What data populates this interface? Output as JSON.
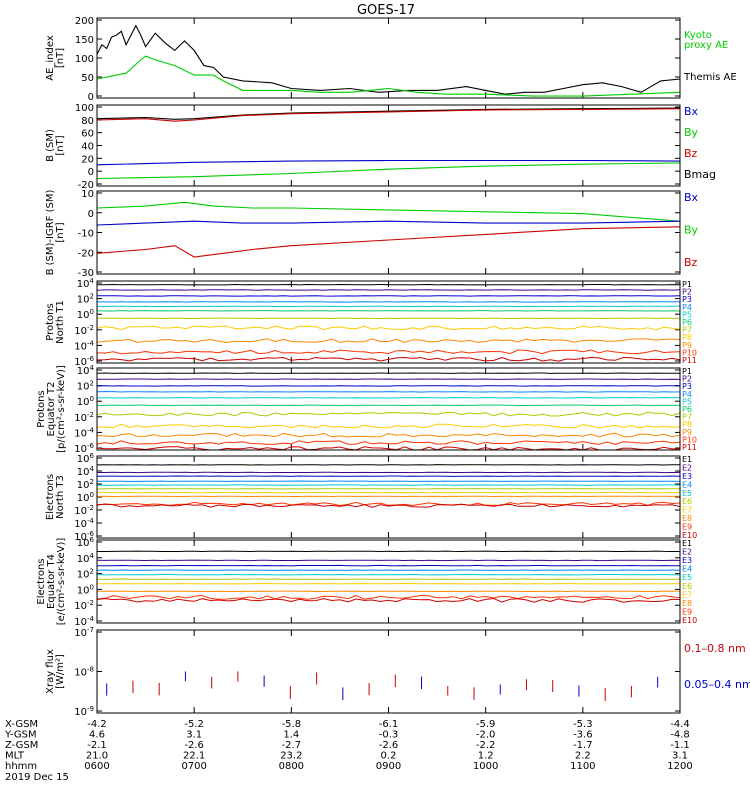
{
  "title": "GOES-17",
  "chart_data": [
    {
      "type": "line",
      "ylabel": "AE_index\n[nT]",
      "yticks": [
        "200",
        "150",
        "100",
        "50",
        "0"
      ],
      "ylim": [
        0,
        210
      ],
      "legend": [
        {
          "text": "Kyoto",
          "color": "#00cc00"
        },
        {
          "text": "proxy AE",
          "color": "#00cc00"
        },
        {
          "text": "Themis AE",
          "color": "#000000"
        }
      ],
      "series": [
        {
          "color": "#000000",
          "t": [
            0,
            0.05,
            0.1,
            0.15,
            0.2,
            0.25,
            0.3,
            0.4,
            0.45,
            0.5,
            0.6,
            0.7,
            0.8,
            0.9,
            1.0,
            1.1,
            1.2,
            1.3,
            1.5,
            1.8,
            2.0,
            2.3,
            2.6,
            2.9,
            3.2,
            3.5,
            3.8,
            4.0,
            4.2,
            4.4,
            4.6,
            4.8,
            5.0,
            5.2,
            5.4,
            5.6,
            5.8,
            6.0
          ],
          "v": [
            115,
            140,
            130,
            160,
            165,
            175,
            140,
            190,
            165,
            135,
            170,
            145,
            125,
            150,
            125,
            85,
            80,
            55,
            45,
            40,
            25,
            20,
            25,
            15,
            20,
            20,
            30,
            20,
            10,
            15,
            15,
            25,
            35,
            40,
            30,
            15,
            45,
            50
          ]
        },
        {
          "color": "#00cc00",
          "t": [
            0,
            0.3,
            0.45,
            0.5,
            0.6,
            0.8,
            1.0,
            1.2,
            1.3,
            1.5,
            2.0,
            2.3,
            2.6,
            3.0,
            3.3,
            3.6,
            4.0,
            4.5,
            5.0,
            5.5,
            6.0
          ],
          "v": [
            50,
            65,
            100,
            110,
            100,
            85,
            60,
            60,
            45,
            20,
            20,
            15,
            15,
            25,
            15,
            10,
            10,
            5,
            5,
            10,
            15
          ]
        }
      ]
    },
    {
      "type": "line",
      "ylabel": "B (SM)\n[nT]",
      "yticks": [
        "100",
        "80",
        "60",
        "40",
        "20",
        "0",
        "-20"
      ],
      "ylim": [
        -25,
        105
      ],
      "legend": [
        {
          "text": "Bx",
          "color": "#0000cc"
        },
        {
          "text": "By",
          "color": "#00cc00"
        },
        {
          "text": "Bz",
          "color": "#cc0000"
        },
        {
          "text": "Bmag",
          "color": "#000000"
        }
      ],
      "series": [
        {
          "color": "#000000",
          "t": [
            0,
            0.5,
            0.8,
            1.0,
            1.5,
            2.0,
            3.0,
            4.0,
            5.0,
            6.0
          ],
          "v": [
            83,
            85,
            82,
            83,
            89,
            92,
            95,
            98,
            99,
            100
          ]
        },
        {
          "color": "#cc0000",
          "t": [
            0,
            0.5,
            0.8,
            1.0,
            1.5,
            2.0,
            3.0,
            4.0,
            5.0,
            6.0
          ],
          "v": [
            81,
            83,
            79,
            81,
            88,
            91,
            94,
            97,
            98,
            99
          ]
        },
        {
          "color": "#0000cc",
          "t": [
            0,
            1.0,
            2.0,
            3.0,
            4.0,
            5.0,
            6.0
          ],
          "v": [
            9,
            13,
            15,
            16,
            16,
            16,
            15
          ]
        },
        {
          "color": "#00cc00",
          "t": [
            0,
            1.0,
            2.0,
            3.0,
            4.0,
            5.0,
            6.0
          ],
          "v": [
            -13,
            -10,
            -5,
            2,
            7,
            10,
            12
          ]
        }
      ]
    },
    {
      "type": "line",
      "ylabel": "B (SM)-IGRF (SM)\n[nT]",
      "yticks": [
        "10",
        "0",
        "-10",
        "-20",
        "-30"
      ],
      "ylim": [
        -31,
        13
      ],
      "legend": [
        {
          "text": "Bx",
          "color": "#0000cc"
        },
        {
          "text": "By",
          "color": "#00cc00"
        },
        {
          "text": "Bz",
          "color": "#cc0000"
        }
      ],
      "series": [
        {
          "color": "#00cc00",
          "t": [
            0,
            0.5,
            0.9,
            1.2,
            1.6,
            2.0,
            3.0,
            4.0,
            5.0,
            5.5,
            6.0
          ],
          "v": [
            4,
            5,
            7,
            5,
            4,
            4,
            3,
            2,
            1,
            -1,
            -3
          ]
        },
        {
          "color": "#0000cc",
          "t": [
            0,
            0.5,
            1.0,
            1.5,
            2.0,
            3.0,
            4.0,
            5.0,
            6.0
          ],
          "v": [
            -5,
            -4,
            -3,
            -4,
            -4,
            -3,
            -4,
            -4,
            -3
          ]
        },
        {
          "color": "#cc0000",
          "t": [
            0,
            0.5,
            0.8,
            1.0,
            1.3,
            1.6,
            2.0,
            3.0,
            4.0,
            5.0,
            6.0
          ],
          "v": [
            -20,
            -18,
            -16,
            -22,
            -20,
            -18,
            -16,
            -13,
            -10,
            -7,
            -6
          ]
        }
      ]
    },
    {
      "type": "line",
      "ylabel": "Protons\nNorth T1",
      "yticks": [
        "10^4",
        "10^2",
        "10^0",
        "10^-2",
        "10^-4",
        "10^-6"
      ],
      "log_range": [
        -7,
        4
      ],
      "channels": [
        {
          "text": "P1",
          "color": "#000000",
          "level": 3.5
        },
        {
          "text": "P2",
          "color": "#440088",
          "level": 2.8
        },
        {
          "text": "P3",
          "color": "#0000cc",
          "level": 2.0
        },
        {
          "text": "P4",
          "color": "#0088ff",
          "level": 1.2
        },
        {
          "text": "P5",
          "color": "#00cccc",
          "level": 0.6
        },
        {
          "text": "P6",
          "color": "#00cc66",
          "level": 0.0
        },
        {
          "text": "P7",
          "color": "#aacc00",
          "level": -1.0
        },
        {
          "text": "P8",
          "color": "#ffcc00",
          "level": -2.3
        },
        {
          "text": "P9",
          "color": "#ff8800",
          "level": -4.0
        },
        {
          "text": "P10",
          "color": "#ff3300",
          "level": -5.5
        },
        {
          "text": "P11",
          "color": "#cc0000",
          "level": -6.5
        }
      ]
    },
    {
      "type": "line",
      "ylabel": "Protons\nEquator T2\n[p/(cm²-s-sr-keV)]",
      "yticks": [
        "10^4",
        "10^2",
        "10^0",
        "10^-2",
        "10^-4",
        "10^-6"
      ],
      "log_range": [
        -7,
        4
      ],
      "channels": [
        {
          "text": "P1",
          "color": "#000000",
          "level": 3.3
        },
        {
          "text": "P2",
          "color": "#440088",
          "level": 2.5
        },
        {
          "text": "P3",
          "color": "#0000cc",
          "level": 1.6
        },
        {
          "text": "P4",
          "color": "#0088ff",
          "level": 0.8
        },
        {
          "text": "P5",
          "color": "#00cccc",
          "level": 0.0
        },
        {
          "text": "P6",
          "color": "#00cc66",
          "level": -1.0
        },
        {
          "text": "P7",
          "color": "#aacc00",
          "level": -2.2
        },
        {
          "text": "P8",
          "color": "#ffcc00",
          "level": -3.8
        },
        {
          "text": "P9",
          "color": "#ff8800",
          "level": -5.0
        },
        {
          "text": "P10",
          "color": "#ff3300",
          "level": -6.0
        },
        {
          "text": "P11",
          "color": "#cc0000",
          "level": -6.8
        }
      ]
    },
    {
      "type": "line",
      "ylabel": "Electrons\nNorth T3",
      "yticks": [
        "10^6",
        "10^4",
        "10^2",
        "10^0",
        "10^-2",
        "10^-4",
        "10^-6"
      ],
      "log_range": [
        -7,
        6
      ],
      "channels": [
        {
          "text": "E1",
          "color": "#000000",
          "level": 4.6
        },
        {
          "text": "E2",
          "color": "#440088",
          "level": 3.4
        },
        {
          "text": "E3",
          "color": "#0000cc",
          "level": 2.8
        },
        {
          "text": "E4",
          "color": "#0088ff",
          "level": 2.0
        },
        {
          "text": "E5",
          "color": "#00cccc",
          "level": 1.4
        },
        {
          "text": "E6",
          "color": "#aacc00",
          "level": 0.8
        },
        {
          "text": "E7",
          "color": "#ffcc00",
          "level": 0.2
        },
        {
          "text": "E8",
          "color": "#ff8800",
          "level": -0.4
        },
        {
          "text": "E9",
          "color": "#ff3300",
          "level": -1.6
        },
        {
          "text": "E10",
          "color": "#cc0000",
          "level": -1.9
        }
      ]
    },
    {
      "type": "line",
      "ylabel": "Electrons\nEquator T4\n[e/(cm²-s-sr-keV)]",
      "yticks": [
        "10^6",
        "10^4",
        "10^2",
        "10^0",
        "10^-2",
        "10^-4"
      ],
      "log_range": [
        -5,
        6
      ],
      "channels": [
        {
          "text": "E1",
          "color": "#000000",
          "level": 4.5
        },
        {
          "text": "E2",
          "color": "#440088",
          "level": 3.3
        },
        {
          "text": "E3",
          "color": "#0000cc",
          "level": 2.6
        },
        {
          "text": "E4",
          "color": "#0088ff",
          "level": 2.0
        },
        {
          "text": "E5",
          "color": "#00cccc",
          "level": 1.4
        },
        {
          "text": "E6",
          "color": "#aacc00",
          "level": 0.8
        },
        {
          "text": "E7",
          "color": "#ffcc00",
          "level": 0.2
        },
        {
          "text": "E8",
          "color": "#ff8800",
          "level": -0.8
        },
        {
          "text": "E9",
          "color": "#ff3300",
          "level": -1.6
        },
        {
          "text": "E10",
          "color": "#cc0000",
          "level": -2.0
        }
      ]
    },
    {
      "type": "line",
      "ylabel": "Xray flux\n[W/m²]",
      "yticks": [
        "10^-7",
        "10^-8",
        "10^-9"
      ],
      "log_range": [
        -9.2,
        -7
      ],
      "legend": [
        {
          "text": "0.1–0.8 nm",
          "color": "#cc0000"
        },
        {
          "text": "0.05–0.4 nm",
          "color": "#0000cc"
        }
      ]
    }
  ],
  "xaxis": {
    "row_labels": [
      "X-GSM",
      "Y-GSM",
      "Z-GSM",
      "MLT",
      "hhmm"
    ],
    "columns": [
      [
        "-4.2",
        "4.6",
        "-2.1",
        "21.0",
        "0600"
      ],
      [
        "-5.2",
        "3.1",
        "-2.6",
        "22.1",
        "0700"
      ],
      [
        "-5.8",
        "1.4",
        "-2.7",
        "23.2",
        "0800"
      ],
      [
        "-6.1",
        "-0.3",
        "-2.6",
        "0.2",
        "0900"
      ],
      [
        "-5.9",
        "-2.0",
        "-2.2",
        "1.2",
        "1000"
      ],
      [
        "-5.3",
        "-3.6",
        "-1.7",
        "2.2",
        "1100"
      ],
      [
        "-4.4",
        "-4.8",
        "-1.1",
        "3.1",
        "1200"
      ]
    ],
    "date": "2019 Dec 15"
  }
}
